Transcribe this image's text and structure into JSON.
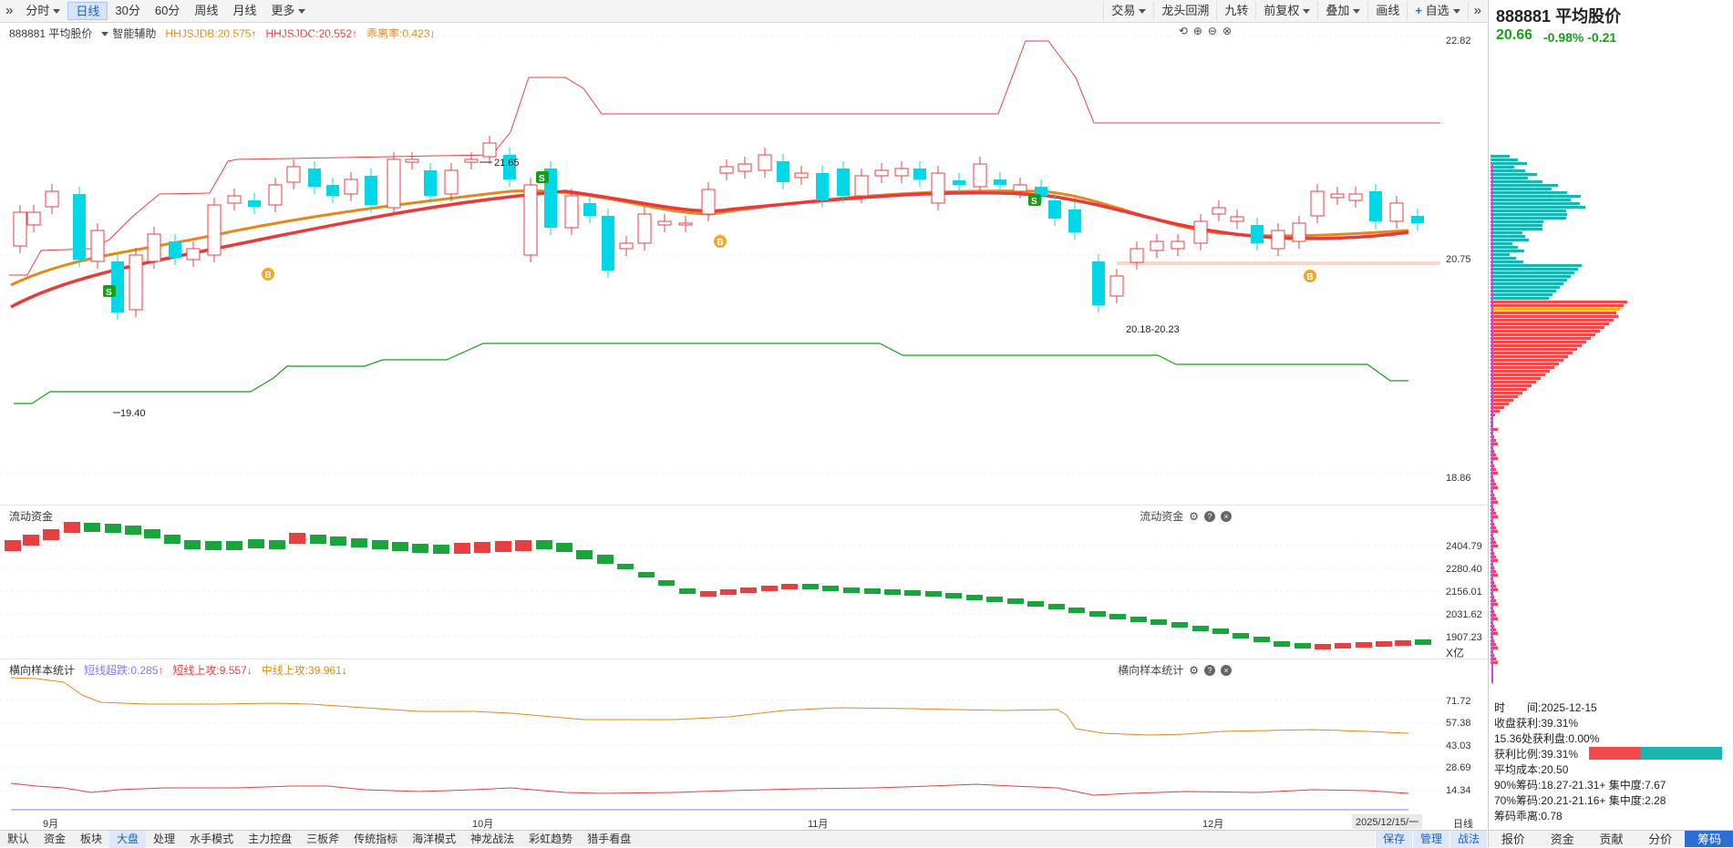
{
  "toolbar": {
    "expand_icon": "double-chevron-right-icon",
    "left_items": [
      {
        "label": "分时",
        "dropdown": true
      },
      {
        "label": "日线",
        "active": true
      },
      {
        "label": "30分"
      },
      {
        "label": "60分"
      },
      {
        "label": "周线"
      },
      {
        "label": "月线"
      },
      {
        "label": "更多",
        "dropdown": true
      }
    ],
    "right_items": [
      {
        "label": "交易",
        "dropdown": true
      },
      {
        "label": "龙头回溯"
      },
      {
        "label": "九转"
      },
      {
        "label": "前复权",
        "dropdown": true
      },
      {
        "label": "叠加",
        "dropdown": true
      },
      {
        "label": "画线"
      },
      {
        "label": "自选",
        "dropdown": true
      }
    ]
  },
  "main": {
    "stock_name": "888881 平均股价",
    "smart_assist": "智能辅助",
    "ind1": "HHJSJDB:20.575",
    "ind2": "HHJSJDC:20.552",
    "ind3": "乖离率:0.423",
    "y_labels": [
      "22.82",
      "20.75",
      "18.86"
    ],
    "annotations": {
      "high": "21.65",
      "low": "19.40",
      "range": "20.18-20.23"
    },
    "colors": {
      "up": "#e84040",
      "down": "#00e0e0",
      "ma_orange": "#e08a1e",
      "ma_red": "#e83a3a",
      "upper": "#e84040",
      "lower": "#17a017"
    }
  },
  "liquidity": {
    "title": "流动资金",
    "right_title": "流动资金",
    "y_labels": [
      "2404.79",
      "2280.40",
      "2156.01",
      "2031.62",
      "1907.23"
    ],
    "unit": "X亿"
  },
  "sample": {
    "title": "横向样本统计",
    "s1": "短线超跌:0.285",
    "s2": "短线上攻:9.557",
    "s3": "中线上攻:39.961",
    "right_title": "横向样本统计",
    "y_labels": [
      "71.72",
      "57.38",
      "43.03",
      "28.69",
      "14.34"
    ]
  },
  "x_axis": [
    "9月",
    "10月",
    "11月",
    "12月"
  ],
  "date_box": "2025/12/15/一",
  "period_label": "日线",
  "bottom_tabs": [
    "默认",
    "资金",
    "板块",
    "大盘",
    "处理",
    "水手模式",
    "主力控盘",
    "三板斧",
    "传统指标",
    "海洋模式",
    "神龙战法",
    "彩虹趋势",
    "猎手看盘"
  ],
  "bottom_active": "大盘",
  "bottom_right": [
    "保存",
    "管理",
    "战法"
  ],
  "right_panel": {
    "title": "888881 平均股价",
    "price": "20.66",
    "change_pct": "-0.98%",
    "change": "-0.21",
    "stats": [
      "时　　间:2025-12-15",
      "收盘获利:39.31%",
      "15.36处获利盘:0.00%",
      "获利比例:39.31%",
      "平均成本:20.50",
      "90%筹码:18.27-21.31+ 集中度:7.67",
      "70%筹码:20.21-21.16+ 集中度:2.28",
      "筹码乖离:0.78"
    ],
    "tabs": [
      "报价",
      "资金",
      "贡献",
      "分价",
      "筹码"
    ],
    "active_tab": "筹码"
  }
}
